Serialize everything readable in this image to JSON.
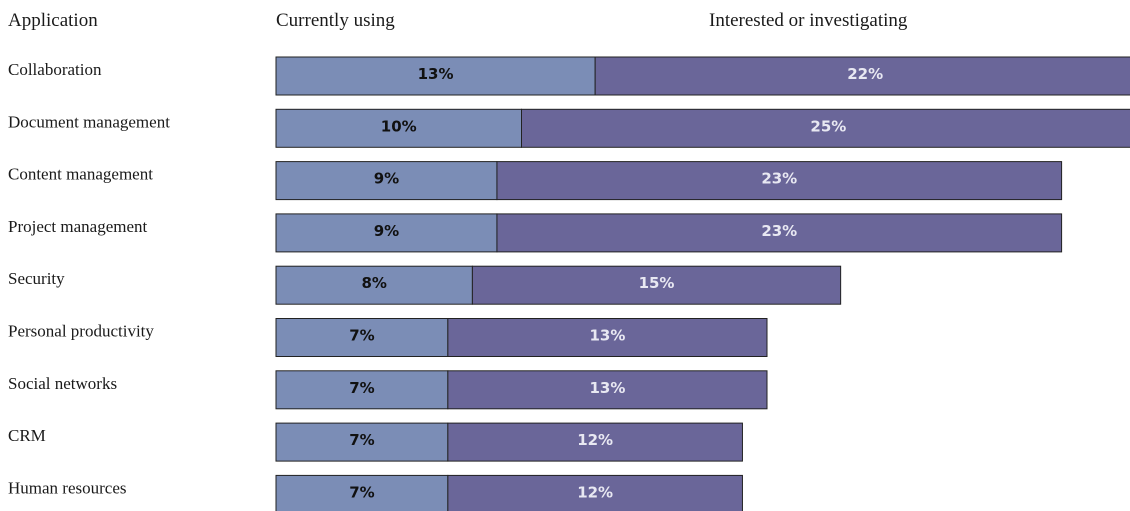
{
  "headers": {
    "application": "Application",
    "currently_using": "Currently using",
    "interested": "Interested or investigating"
  },
  "chart_data": {
    "type": "bar",
    "stacked": true,
    "orientation": "horizontal",
    "categories": [
      "Collaboration",
      "Document management",
      "Content management",
      "Project management",
      "Security",
      "Personal productivity",
      "Social networks",
      "CRM",
      "Human resources"
    ],
    "series": [
      {
        "name": "Currently using",
        "values": [
          13,
          10,
          9,
          9,
          8,
          7,
          7,
          7,
          7
        ],
        "labels": [
          "13%",
          "10%",
          "9%",
          "9%",
          "8%",
          "7%",
          "7%",
          "7%",
          "7%"
        ]
      },
      {
        "name": "Interested or investigating",
        "values": [
          22,
          25,
          23,
          23,
          15,
          13,
          13,
          12,
          12
        ],
        "labels": [
          "22%",
          "25%",
          "23%",
          "23%",
          "15%",
          "13%",
          "13%",
          "12%",
          "12%"
        ]
      }
    ],
    "colors": {
      "currently_using": "#7b8db6",
      "interested": "#6a6699",
      "border": "#222222"
    },
    "grid": false,
    "legend": "top (column headers)"
  }
}
